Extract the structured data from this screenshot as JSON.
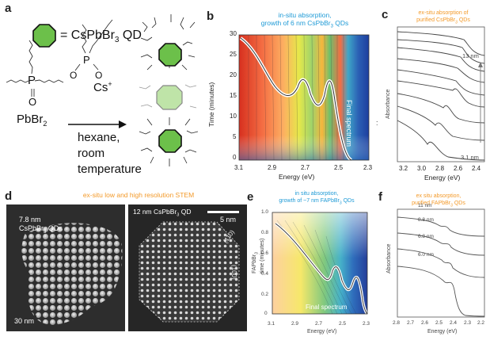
{
  "panel_labels": {
    "a": "a",
    "b": "b",
    "c": "c",
    "d": "d",
    "e": "e",
    "f": "f"
  },
  "scheme": {
    "legend": "= CsPbBr",
    "legend_sub": "3",
    "legend_suffix": " QD",
    "ligand_p": "P",
    "ligand_o": "O",
    "ligand2_p": "P",
    "ligand2_o1": "O",
    "ligand2_o2": "O",
    "cs": "Cs",
    "cs_sup": "+",
    "pbbr": "PbBr",
    "pbbr_sub": "2",
    "conditions": [
      "hexane,",
      "room",
      "temperature"
    ]
  },
  "panel_b": {
    "title_line1": "in-situ absorption,",
    "title_line2_pre": "growth of 6 nm CsPbBr",
    "title_line2_sub": "3",
    "title_line2_post": " QDs",
    "ylabel": "Time (minutes)",
    "xlabel": "Energy (eV)",
    "annotation": "Final spectrum",
    "colon": ":"
  },
  "panel_c": {
    "title_line1": "ex-situ absorption of",
    "title_line2_pre": "purified CsPbBr",
    "title_line2_sub": "3",
    "title_line2_post": " QDs",
    "ylabel": "Absorbance",
    "xlabel": "Energy (eV)",
    "top_label": "13 nm",
    "bottom_label": "3.1 nm"
  },
  "panel_d": {
    "title": "ex-situ low and high resolution STEM",
    "left_label_line1": "7.8 nm",
    "left_label_line2_pre": "CsPbBr",
    "left_label_line2_sub": "3",
    "left_label_line2_post": " QDs",
    "left_scale": "30 nm",
    "right_label_pre": "12 nm CsPbBr",
    "right_label_sub": "3",
    "right_label_post": " QD",
    "right_scale": "5 nm",
    "facet1": "(110)",
    "facet2": "(100)"
  },
  "panel_e": {
    "title_line1": "in situ absorption,",
    "title_line2_pre": "growth of ~7 nm FAPbBr",
    "title_line2_sub": "3",
    "title_line2_post": " QDs",
    "ylabel_line1": "FAPbBr",
    "ylabel_sub": "3",
    "ylabel_line2": "time (minutes)",
    "xlabel": "Energy (eV)",
    "annotation": "Final spectrum"
  },
  "panel_f": {
    "title_line1": "ex situ absorption,",
    "title_line2_pre": "purified FAPbBr",
    "title_line2_sub": "3",
    "title_line2_post": " QDs",
    "ylabel": "Absorbance",
    "xlabel": "Energy (eV)",
    "sizes": [
      "11 nm",
      "8.8 nm",
      "6.8 nm",
      "6.0 nm"
    ]
  },
  "chart_data": [
    {
      "type": "heatmap",
      "panel": "b",
      "title": "in-situ absorption, growth of 6 nm CsPbBr3 QDs",
      "xlabel": "Energy (eV)",
      "ylabel": "Time (minutes)",
      "x_ticks": [
        "3.1",
        "2.9",
        "2.7",
        "2.5",
        "2.3"
      ],
      "y_ticks": [
        "0",
        "5",
        "10",
        "15",
        "20",
        "25",
        "30"
      ],
      "xlim": [
        3.1,
        2.3
      ],
      "ylim": [
        0,
        30
      ],
      "final_spectrum": {
        "energy": [
          3.1,
          3.0,
          2.95,
          2.9,
          2.85,
          2.8,
          2.75,
          2.7,
          2.65,
          2.6,
          2.55,
          2.5,
          2.48,
          2.45,
          2.4,
          2.35,
          2.3
        ],
        "time_equiv": [
          29,
          26,
          22,
          20,
          17.5,
          17,
          18,
          19.5,
          17,
          14,
          14,
          20,
          18,
          6,
          0.5,
          0,
          0
        ]
      }
    },
    {
      "type": "line",
      "panel": "c",
      "title": "ex-situ absorption of purified CsPbBr3 QDs",
      "xlabel": "Energy (eV)",
      "ylabel": "Absorbance",
      "x_ticks": [
        "3.2",
        "3.0",
        "2.8",
        "2.6",
        "2.4"
      ],
      "xlim": [
        3.3,
        2.35
      ],
      "series_count": 9,
      "series_labels": [
        "13 nm",
        "3.1 nm"
      ]
    },
    {
      "type": "heatmap",
      "panel": "e",
      "title": "in situ absorption, growth of ~7 nm FAPbBr3 QDs",
      "xlabel": "Energy (eV)",
      "ylabel": "FAPbBr3 time (minutes)",
      "x_ticks": [
        "3.1",
        "2.9",
        "2.7",
        "2.5",
        "2.3"
      ],
      "y_ticks": [
        "0",
        "0.2",
        "0.4",
        "0.6",
        "0.8",
        "1.0"
      ],
      "xlim": [
        3.1,
        2.3
      ],
      "ylim": [
        0,
        1.0
      ]
    },
    {
      "type": "line",
      "panel": "f",
      "title": "ex situ absorption, purified FAPbBr3 QDs",
      "xlabel": "Energy (eV)",
      "ylabel": "Absorbance",
      "x_ticks": [
        "2.8",
        "2.7",
        "2.6",
        "2.5",
        "2.4",
        "2.3",
        "2.2"
      ],
      "xlim": [
        2.8,
        2.2
      ],
      "series": [
        {
          "name": "11 nm"
        },
        {
          "name": "8.8 nm"
        },
        {
          "name": "6.8 nm"
        },
        {
          "name": "6.0 nm"
        }
      ]
    }
  ]
}
